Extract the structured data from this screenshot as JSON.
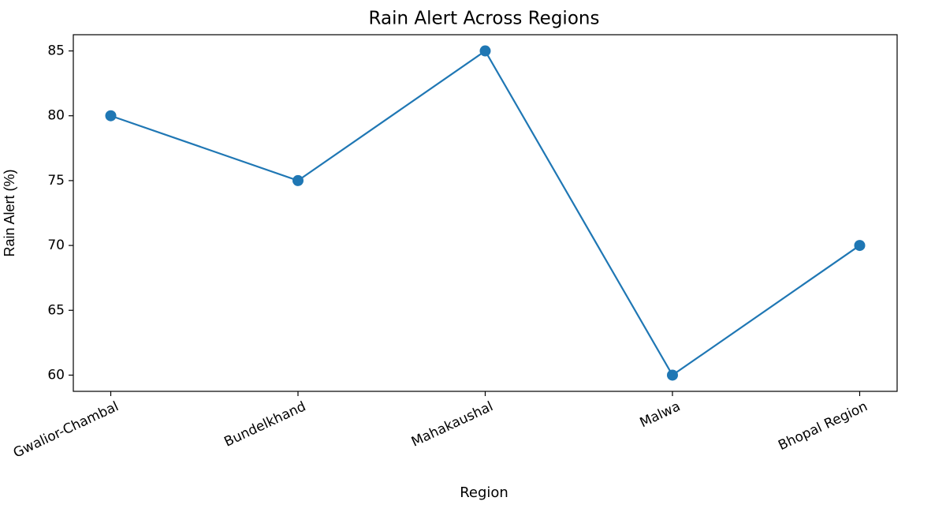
{
  "chart_data": {
    "type": "line",
    "title": "Rain Alert Across Regions",
    "x_label": "Region",
    "y_label": "Rain Alert (%)",
    "categories": [
      "Gwalior-Chambal",
      "Bundelkhand",
      "Mahakaushal",
      "Malwa",
      "Bhopal Region"
    ],
    "values": [
      80,
      75,
      85,
      60,
      70
    ],
    "color": "#1f77b4",
    "marker": "circle",
    "ylim": [
      58.75,
      86.25
    ],
    "yticks": [
      60,
      65,
      70,
      75,
      80,
      85
    ],
    "grid": false
  }
}
